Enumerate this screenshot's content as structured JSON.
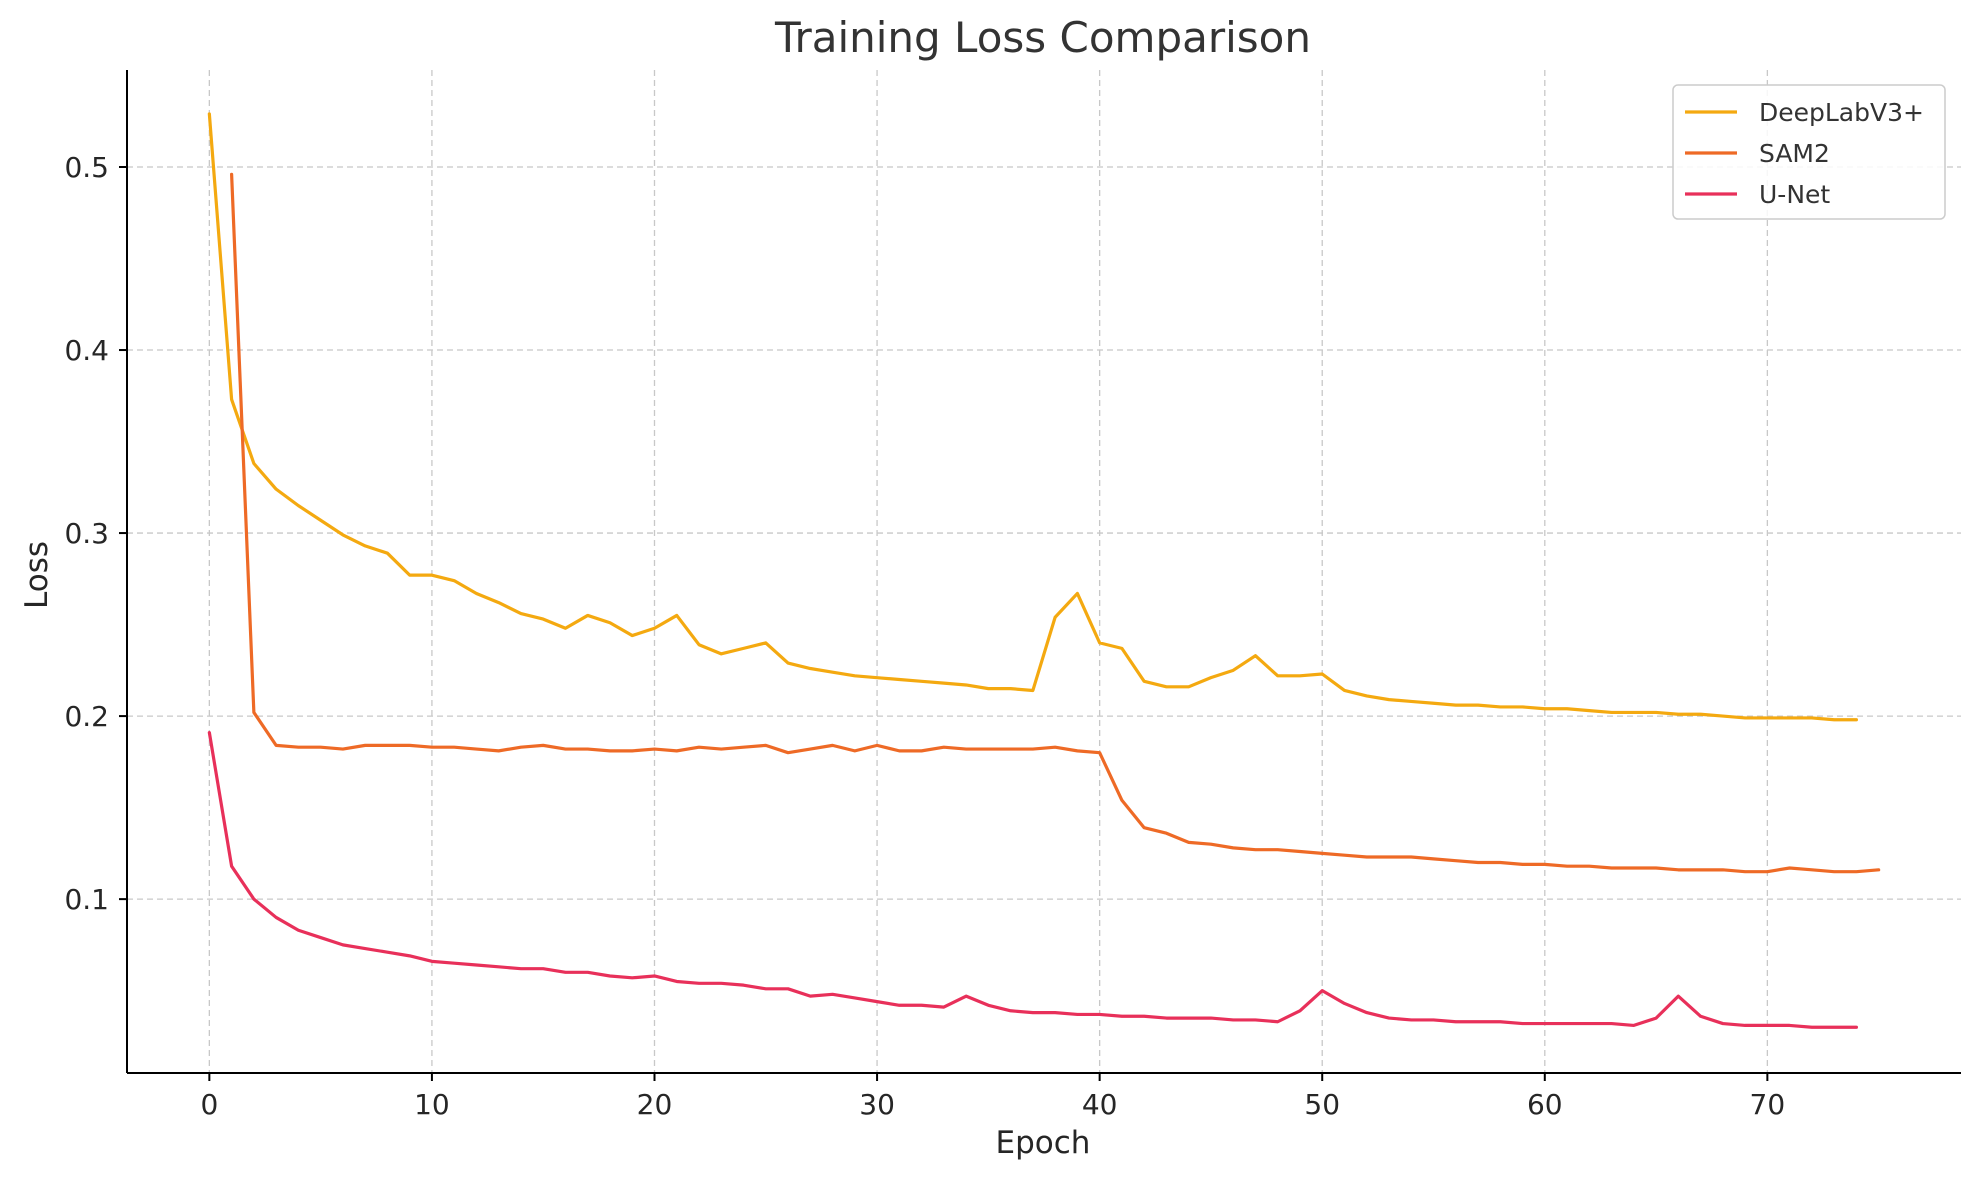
{
  "chart_data": {
    "type": "line",
    "title": "Training Loss Comparison",
    "xlabel": "Epoch",
    "ylabel": "Loss",
    "xlim": [
      -3.7,
      78.7
    ],
    "ylim": [
      0.005,
      0.553
    ],
    "x_ticks": [
      0,
      10,
      20,
      30,
      40,
      50,
      60,
      70
    ],
    "x_tick_labels": [
      "0",
      "10",
      "20",
      "30",
      "40",
      "50",
      "60",
      "70"
    ],
    "y_ticks": [
      0.1,
      0.2,
      0.3,
      0.4,
      0.5
    ],
    "y_tick_labels": [
      "0.1",
      "0.2",
      "0.3",
      "0.4",
      "0.5"
    ],
    "grid": true,
    "legend_position": "top-right",
    "series": [
      {
        "name": "DeepLabV3+",
        "color": "#f4a910",
        "x_start": 0,
        "values": [
          0.529,
          0.373,
          0.338,
          0.324,
          0.315,
          0.307,
          0.299,
          0.293,
          0.289,
          0.277,
          0.277,
          0.274,
          0.267,
          0.262,
          0.256,
          0.253,
          0.248,
          0.255,
          0.251,
          0.244,
          0.248,
          0.255,
          0.239,
          0.234,
          0.237,
          0.24,
          0.229,
          0.226,
          0.224,
          0.222,
          0.221,
          0.22,
          0.219,
          0.218,
          0.217,
          0.215,
          0.215,
          0.214,
          0.254,
          0.267,
          0.24,
          0.237,
          0.219,
          0.216,
          0.216,
          0.221,
          0.225,
          0.233,
          0.222,
          0.222,
          0.223,
          0.214,
          0.211,
          0.209,
          0.208,
          0.207,
          0.206,
          0.206,
          0.205,
          0.205,
          0.204,
          0.204,
          0.203,
          0.202,
          0.202,
          0.202,
          0.201,
          0.201,
          0.2,
          0.199,
          0.199,
          0.199,
          0.199,
          0.198,
          0.198
        ]
      },
      {
        "name": "SAM2",
        "color": "#ee6a26",
        "x_start": 1,
        "values": [
          0.496,
          0.202,
          0.184,
          0.183,
          0.183,
          0.182,
          0.184,
          0.184,
          0.184,
          0.183,
          0.183,
          0.182,
          0.181,
          0.183,
          0.184,
          0.182,
          0.182,
          0.181,
          0.181,
          0.182,
          0.181,
          0.183,
          0.182,
          0.183,
          0.184,
          0.18,
          0.182,
          0.184,
          0.181,
          0.184,
          0.181,
          0.181,
          0.183,
          0.182,
          0.182,
          0.182,
          0.182,
          0.183,
          0.181,
          0.18,
          0.154,
          0.139,
          0.136,
          0.131,
          0.13,
          0.128,
          0.127,
          0.127,
          0.126,
          0.125,
          0.124,
          0.123,
          0.123,
          0.123,
          0.122,
          0.121,
          0.12,
          0.12,
          0.119,
          0.119,
          0.118,
          0.118,
          0.117,
          0.117,
          0.117,
          0.116,
          0.116,
          0.116,
          0.115,
          0.115,
          0.117,
          0.116,
          0.115,
          0.115,
          0.116
        ]
      },
      {
        "name": "U-Net",
        "color": "#e8305a",
        "x_start": 0,
        "values": [
          0.191,
          0.118,
          0.1,
          0.09,
          0.083,
          0.079,
          0.075,
          0.073,
          0.071,
          0.069,
          0.066,
          0.065,
          0.064,
          0.063,
          0.062,
          0.062,
          0.06,
          0.06,
          0.058,
          0.057,
          0.058,
          0.055,
          0.054,
          0.054,
          0.053,
          0.051,
          0.051,
          0.047,
          0.048,
          0.046,
          0.044,
          0.042,
          0.042,
          0.041,
          0.047,
          0.042,
          0.039,
          0.038,
          0.038,
          0.037,
          0.037,
          0.036,
          0.036,
          0.035,
          0.035,
          0.035,
          0.034,
          0.034,
          0.033,
          0.039,
          0.05,
          0.043,
          0.038,
          0.035,
          0.034,
          0.034,
          0.033,
          0.033,
          0.033,
          0.032,
          0.032,
          0.032,
          0.032,
          0.032,
          0.031,
          0.035,
          0.047,
          0.036,
          0.032,
          0.031,
          0.031,
          0.031,
          0.03,
          0.03,
          0.03
        ]
      }
    ]
  }
}
